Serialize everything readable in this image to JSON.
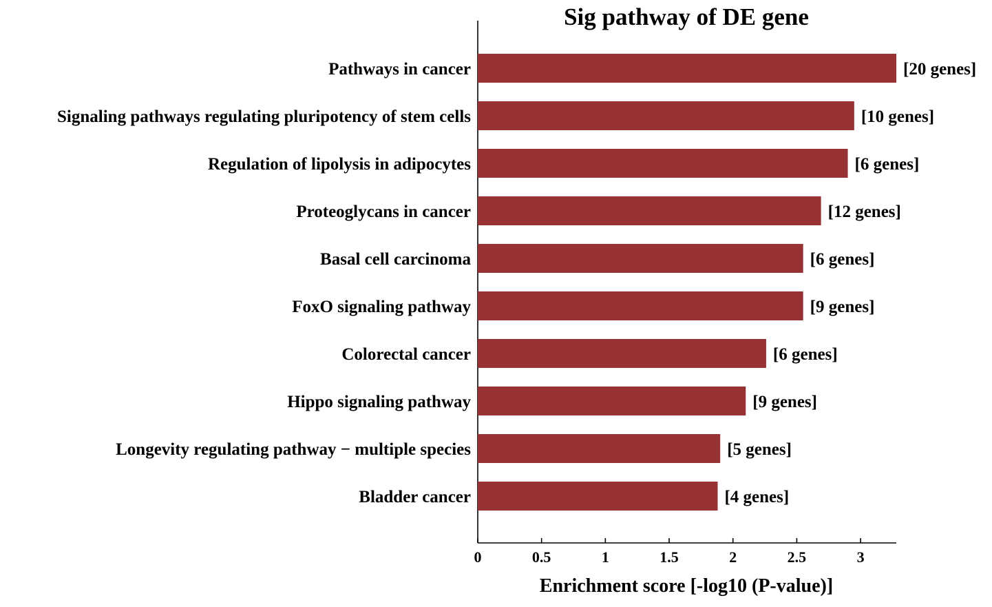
{
  "chart_data": {
    "type": "bar",
    "orientation": "horizontal",
    "title": "Sig pathway of DE gene",
    "xlabel": "Enrichment score [-log10 (P-value)]",
    "ylabel": "",
    "xlim": [
      0,
      3.28
    ],
    "xticks": [
      0,
      0.5,
      1,
      1.5,
      2,
      2.5,
      3
    ],
    "xtick_labels": [
      "0",
      "0.5",
      "1",
      "1.5",
      "2",
      "2.5",
      "3"
    ],
    "grid": false,
    "bar_color": "#963134",
    "categories": [
      "Pathways in cancer",
      "Signaling pathways regulating pluripotency of stem cells",
      "Regulation of lipolysis in adipocytes",
      "Proteoglycans in cancer",
      "Basal cell carcinoma",
      "FoxO signaling pathway",
      "Colorectal cancer",
      "Hippo signaling pathway",
      "Longevity regulating pathway − multiple species",
      "Bladder cancer"
    ],
    "values": [
      3.28,
      2.95,
      2.9,
      2.69,
      2.55,
      2.55,
      2.26,
      2.1,
      1.9,
      1.88
    ],
    "data_labels": [
      "[20 genes]",
      "[10 genes]",
      "[6 genes]",
      "[12 genes]",
      "[6 genes]",
      "[9 genes]",
      "[6 genes]",
      "[9 genes]",
      "[5 genes]",
      "[4 genes]"
    ]
  }
}
